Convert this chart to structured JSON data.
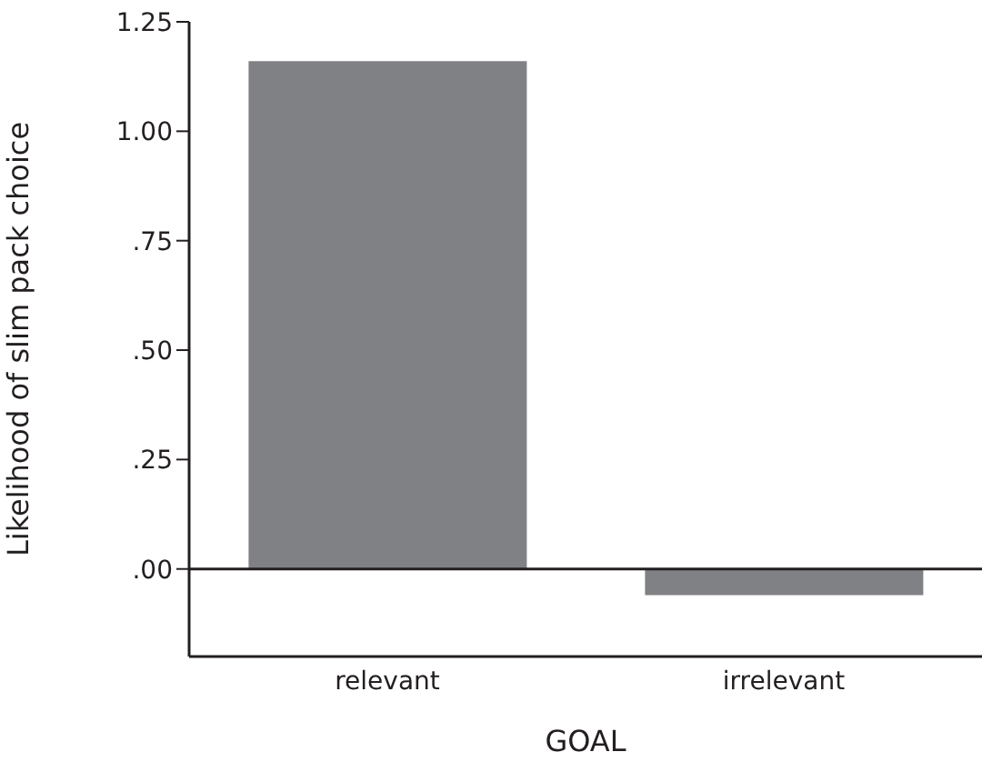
{
  "chart_data": {
    "type": "bar",
    "xlabel": "GOAL",
    "ylabel": "Likelihood of slim pack choice",
    "categories": [
      "relevant",
      "irrelevant"
    ],
    "values": [
      1.16,
      -0.06
    ],
    "color": "#808184",
    "ylim": [
      -0.2,
      1.25
    ],
    "yticks": [
      {
        "value": 0,
        "label": ".00"
      },
      {
        "value": 0.25,
        "label": ".25"
      },
      {
        "value": 0.5,
        "label": ".50"
      },
      {
        "value": 0.75,
        "label": ".75"
      },
      {
        "value": 1,
        "label": "1.00"
      },
      {
        "value": 1.25,
        "label": "1.25"
      }
    ],
    "ref_lines": [
      {
        "axis": "y",
        "value": 0,
        "color": "#231f20"
      }
    ],
    "grid": false,
    "legend": false
  }
}
